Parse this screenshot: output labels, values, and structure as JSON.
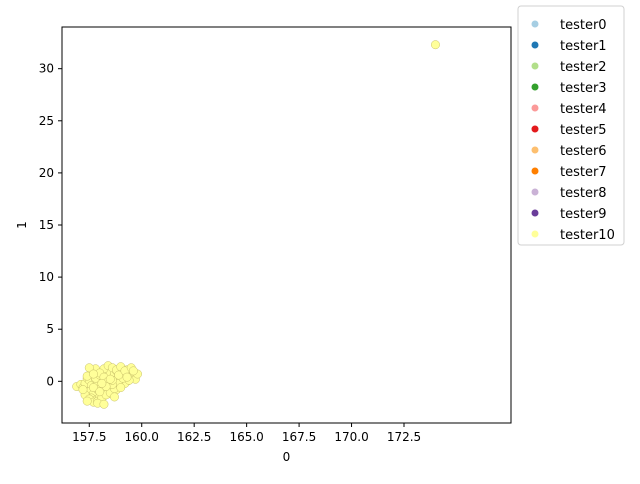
{
  "chart_data": {
    "type": "scatter",
    "title": "",
    "xlabel": "0",
    "ylabel": "1",
    "xlim": [
      156.2,
      177.6
    ],
    "ylim": [
      -4.0,
      34.0
    ],
    "xticks": [
      157.5,
      160.0,
      162.5,
      165.0,
      167.5,
      170.0,
      172.5
    ],
    "xtick_labels": [
      "157.5",
      "160.0",
      "162.5",
      "165.0",
      "167.5",
      "170.0",
      "172.5"
    ],
    "yticks": [
      0,
      5,
      10,
      15,
      20,
      25,
      30
    ],
    "ytick_labels": [
      "0",
      "5",
      "10",
      "15",
      "20",
      "25",
      "30"
    ],
    "grid": false,
    "legend_position": "outside-right",
    "series": [
      {
        "name": "tester0",
        "color": "#a6cee3",
        "x": [],
        "y": []
      },
      {
        "name": "tester1",
        "color": "#1f78b4",
        "x": [],
        "y": []
      },
      {
        "name": "tester2",
        "color": "#b2df8a",
        "x": [],
        "y": []
      },
      {
        "name": "tester3",
        "color": "#33a02c",
        "x": [],
        "y": []
      },
      {
        "name": "tester4",
        "color": "#fb9a99",
        "x": [],
        "y": []
      },
      {
        "name": "tester5",
        "color": "#e31a1c",
        "x": [],
        "y": []
      },
      {
        "name": "tester6",
        "color": "#fdbf6f",
        "x": [],
        "y": []
      },
      {
        "name": "tester7",
        "color": "#ff7f00",
        "x": [],
        "y": []
      },
      {
        "name": "tester8",
        "color": "#cab2d6",
        "x": [],
        "y": []
      },
      {
        "name": "tester9",
        "color": "#6a3d9a",
        "x": [],
        "y": []
      },
      {
        "name": "tester10",
        "color": "#ffff99",
        "x": [
          174.0,
          156.9,
          157.1,
          157.2,
          157.3,
          157.4,
          157.5,
          157.6,
          157.7,
          157.8,
          157.9,
          158.0,
          158.1,
          158.2,
          158.3,
          158.4,
          158.5,
          158.6,
          158.7,
          158.8,
          158.9,
          159.0,
          159.1,
          159.2,
          159.3,
          159.4,
          159.5,
          159.6,
          159.7,
          157.5,
          157.7,
          157.9,
          158.1,
          158.3,
          158.5,
          158.7,
          158.9,
          159.1,
          159.3,
          157.6,
          157.8,
          158.0,
          158.2,
          158.4,
          158.6,
          158.8,
          159.0,
          159.2,
          159.4,
          159.6,
          157.3,
          157.5,
          157.7,
          157.9,
          158.1,
          158.3,
          158.5,
          158.7,
          158.9,
          159.1,
          157.8,
          158.0,
          158.2,
          158.4,
          158.6,
          158.8,
          159.0,
          157.6,
          157.8,
          158.0,
          158.2,
          158.4,
          158.6,
          157.4,
          157.7,
          158.0,
          158.3,
          158.6,
          158.9,
          159.2,
          159.5,
          159.8,
          157.2,
          157.4,
          157.9,
          158.1,
          158.5,
          158.7,
          159.0,
          159.3,
          159.6,
          157.5,
          158.2,
          157.7
        ],
        "y": [
          32.3,
          -0.5,
          -0.3,
          -0.6,
          -0.2,
          0.3,
          0.1,
          -0.4,
          0.6,
          0.2,
          -0.1,
          0.5,
          0.0,
          0.9,
          0.4,
          -0.2,
          0.8,
          0.3,
          0.7,
          1.0,
          0.5,
          0.9,
          0.2,
          0.6,
          1.1,
          0.8,
          0.4,
          0.5,
          0.2,
          -1.0,
          -1.2,
          -0.8,
          -1.1,
          -0.9,
          -0.6,
          -0.4,
          -0.3,
          -0.1,
          0.0,
          -1.6,
          -1.8,
          -1.5,
          -1.4,
          -1.2,
          -1.0,
          -0.8,
          -0.5,
          -0.2,
          0.1,
          0.9,
          -1.3,
          -1.7,
          -2.0,
          -1.9,
          -1.6,
          -1.3,
          -1.1,
          -0.7,
          -0.2,
          0.3,
          0.3,
          0.6,
          1.2,
          1.5,
          1.3,
          1.1,
          1.4,
          0.9,
          1.2,
          0.8,
          0.4,
          0.0,
          -0.3,
          0.5,
          -0.6,
          -1.0,
          -0.5,
          0.1,
          0.6,
          1.0,
          1.3,
          0.7,
          -0.8,
          -1.9,
          -2.1,
          -0.2,
          0.2,
          -1.5,
          -0.6,
          0.4,
          1.0,
          1.3,
          -2.2,
          0.7
        ]
      }
    ]
  }
}
